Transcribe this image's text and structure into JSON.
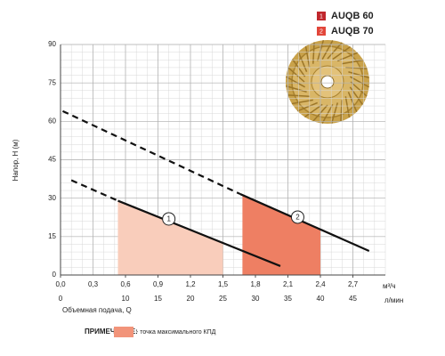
{
  "chart_data": {
    "type": "line",
    "xlim": [
      0,
      3
    ],
    "ylim": [
      0,
      90
    ],
    "x2lim": [
      0,
      50
    ],
    "xticks": [
      {
        "value": 0,
        "label": "0,0"
      },
      {
        "value": 0.3,
        "label": "0,3"
      },
      {
        "value": 0.6,
        "label": "0,6"
      },
      {
        "value": 0.9,
        "label": "0,9"
      },
      {
        "value": 1.2,
        "label": "1,2"
      },
      {
        "value": 1.5,
        "label": "1,5"
      },
      {
        "value": 1.8,
        "label": "1,8"
      },
      {
        "value": 2.1,
        "label": "2,1"
      },
      {
        "value": 2.4,
        "label": "2,4"
      },
      {
        "value": 2.7,
        "label": "2,7"
      }
    ],
    "x2ticks": [
      0,
      10,
      15,
      20,
      25,
      30,
      35,
      40,
      45
    ],
    "yticks": [
      0,
      15,
      30,
      45,
      60,
      75,
      90
    ],
    "xminor": 0.1,
    "yminor": 3,
    "x_unit": "м³/ч",
    "x2_unit": "л/мин",
    "x_label": "Объемная подача, Q",
    "y_label": "Напор, Н (м)",
    "series": [
      {
        "name": "AUQB 60",
        "marker": "1",
        "color": "#111111",
        "marker_color": "#c0272d",
        "x": [
          0.1,
          0.53,
          2.03
        ],
        "values": [
          37,
          29,
          3.5
        ],
        "line_styles": [
          "dashed",
          "solid"
        ],
        "shade_range": [
          0.53,
          1.5
        ],
        "shade_color": "#f9cdbb",
        "label_at": [
          1.0,
          21.9
        ]
      },
      {
        "name": "AUQB 70",
        "marker": "2",
        "color": "#111111",
        "marker_color": "#e2463a",
        "x": [
          0.02,
          1.66,
          2.85
        ],
        "values": [
          64,
          31.6,
          9.4
        ],
        "line_styles": [
          "dashed",
          "solid"
        ],
        "shade_range": [
          1.68,
          2.4
        ],
        "shade_color": "#ee7f63",
        "label_at": [
          2.19,
          22.6
        ]
      }
    ],
    "note": {
      "label": "ПРИМЕЧАНИЕ:",
      "text": "- точка максимального КПД",
      "color": "#f2947a"
    }
  }
}
